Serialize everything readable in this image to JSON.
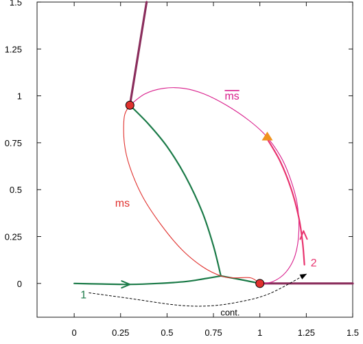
{
  "chart_data": {
    "type": "line",
    "title": "",
    "xlabel": "",
    "ylabel": "",
    "xlim": [
      -0.2,
      1.5
    ],
    "ylim": [
      -0.18,
      1.5
    ],
    "x_ticks": [
      0,
      0.25,
      0.5,
      0.75,
      1,
      1.25,
      1.5
    ],
    "x_tick_labels": [
      "0",
      "0.25",
      "0.5",
      "0.75",
      "1",
      "1.25",
      "1.5"
    ],
    "y_ticks": [
      0,
      0.25,
      0.5,
      0.75,
      1,
      1.25,
      1.5
    ],
    "y_tick_labels": [
      "0",
      "0.25",
      "0.5",
      "0.75",
      "1",
      "1.25",
      "1.5"
    ],
    "grid": false,
    "colors": {
      "green": "#1a7a47",
      "purple": "#8a2d5c",
      "red": "#e0312e",
      "magenta": "#d81b8a",
      "pink": "#e8336e",
      "orange": "#f0921e",
      "black": "#000000"
    },
    "series": [
      {
        "key": "purple_upper",
        "color": "#8a2d5c",
        "points": [
          [
            0.3,
            0.95
          ],
          [
            0.39,
            1.5
          ]
        ]
      },
      {
        "key": "purple_lower",
        "color": "#8a2d5c",
        "points": [
          [
            1.0,
            0.0
          ],
          [
            1.5,
            0.0
          ]
        ]
      },
      {
        "key": "green_entry",
        "color": "#1a7a47",
        "points": [
          [
            0.0,
            0.0
          ],
          [
            0.15,
            -0.003
          ],
          [
            0.3,
            -0.005
          ],
          [
            0.45,
            0.0
          ],
          [
            0.6,
            0.01
          ],
          [
            0.7,
            0.025
          ],
          [
            0.79,
            0.04
          ]
        ]
      },
      {
        "key": "green_to_node",
        "color": "#1a7a47",
        "points": [
          [
            0.79,
            0.04
          ],
          [
            0.9,
            0.02
          ],
          [
            1.0,
            0.0
          ]
        ]
      },
      {
        "key": "green_upper",
        "color": "#1a7a47",
        "points": [
          [
            0.79,
            0.04
          ],
          [
            0.75,
            0.2
          ],
          [
            0.69,
            0.38
          ],
          [
            0.6,
            0.57
          ],
          [
            0.5,
            0.73
          ],
          [
            0.4,
            0.85
          ],
          [
            0.3,
            0.95
          ]
        ]
      },
      {
        "key": "ms_curve",
        "color": "#e0312e",
        "points": [
          [
            0.3,
            0.95
          ],
          [
            0.27,
            0.89
          ],
          [
            0.27,
            0.75
          ],
          [
            0.3,
            0.62
          ],
          [
            0.37,
            0.46
          ],
          [
            0.47,
            0.31
          ],
          [
            0.58,
            0.18
          ],
          [
            0.69,
            0.09
          ],
          [
            0.79,
            0.04
          ],
          [
            0.86,
            0.03
          ],
          [
            0.95,
            0.03
          ],
          [
            1.0,
            0.0
          ]
        ]
      },
      {
        "key": "ms_bar_curve",
        "color": "#d81b8a",
        "points": [
          [
            0.3,
            0.95
          ],
          [
            0.38,
            1.01
          ],
          [
            0.48,
            1.04
          ],
          [
            0.59,
            1.04
          ],
          [
            0.7,
            1.01
          ],
          [
            0.82,
            0.95
          ],
          [
            0.94,
            0.87
          ],
          [
            1.03,
            0.79
          ],
          [
            1.11,
            0.68
          ],
          [
            1.16,
            0.57
          ],
          [
            1.2,
            0.43
          ],
          [
            1.21,
            0.28
          ],
          [
            1.19,
            0.15
          ],
          [
            1.14,
            0.06
          ],
          [
            1.07,
            0.01
          ],
          [
            1.0,
            0.0
          ]
        ]
      },
      {
        "key": "pink_branch",
        "color": "#e8336e",
        "points": [
          [
            1.04,
            0.77
          ],
          [
            1.11,
            0.65
          ],
          [
            1.17,
            0.5
          ],
          [
            1.21,
            0.35
          ],
          [
            1.23,
            0.22
          ],
          [
            1.24,
            0.1
          ]
        ]
      },
      {
        "key": "cont_dashed",
        "color": "#000000",
        "dashed": true,
        "points": [
          [
            0.08,
            -0.05
          ],
          [
            0.3,
            -0.08
          ],
          [
            0.55,
            -0.115
          ],
          [
            0.72,
            -0.12
          ],
          [
            0.88,
            -0.1
          ],
          [
            1.05,
            -0.055
          ],
          [
            1.25,
            0.05
          ]
        ]
      }
    ],
    "markers": [
      {
        "key": "node_upper",
        "shape": "circle",
        "x": 0.3,
        "y": 0.95,
        "color": "#e0312e"
      },
      {
        "key": "node_lower",
        "shape": "circle",
        "x": 1.0,
        "y": 0.0,
        "color": "#e0312e"
      },
      {
        "key": "triangle",
        "shape": "triangle",
        "x": 1.04,
        "y": 0.78,
        "color": "#f0921e"
      }
    ],
    "annotations": [
      {
        "key": "label_ms",
        "text": "ms",
        "x": 0.26,
        "y": 0.41,
        "color": "#e0312e"
      },
      {
        "key": "label_ms_bar",
        "text": "ms",
        "overline": true,
        "x": 0.85,
        "y": 0.98,
        "color": "#d81b8a"
      },
      {
        "key": "label_1",
        "text": "1",
        "x": 0.05,
        "y": -0.08,
        "color": "#1a7a47"
      },
      {
        "key": "label_2",
        "text": "2",
        "x": 1.29,
        "y": 0.09,
        "color": "#e8336e"
      },
      {
        "key": "label_cont",
        "text": "cont.",
        "x": 0.84,
        "y": -0.17,
        "color": "#000000"
      }
    ]
  }
}
